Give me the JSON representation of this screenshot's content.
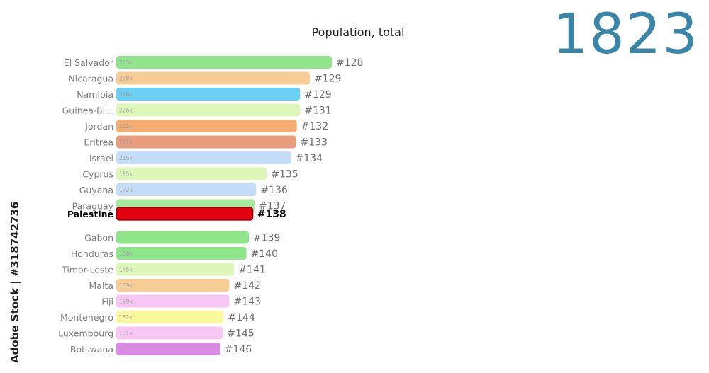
{
  "watermark": "Adobe Stock | #318742736",
  "chart_data": {
    "type": "bar",
    "title": "Population, total",
    "year": "1823",
    "highlight": "Palestine",
    "items": [
      {
        "name": "El Salvador",
        "value_label": "265k",
        "value": 265,
        "rank": "#128",
        "color": "#8fe58a"
      },
      {
        "name": "Nicaragua",
        "value_label": "238k",
        "value": 238,
        "rank": "#129",
        "color": "#f8cc95"
      },
      {
        "name": "Namibia",
        "value_label": "226k",
        "value": 226,
        "rank": "#129",
        "color": "#6bd0f5"
      },
      {
        "name": "Guinea-Bi...",
        "value_label": "226k",
        "value": 226,
        "rank": "#131",
        "color": "#dcf7b8"
      },
      {
        "name": "Jordan",
        "value_label": "222k",
        "value": 222,
        "rank": "#132",
        "color": "#f6ad72"
      },
      {
        "name": "Eritrea",
        "value_label": "221k",
        "value": 221,
        "rank": "#133",
        "color": "#ea9d7e"
      },
      {
        "name": "Israel",
        "value_label": "215k",
        "value": 215,
        "rank": "#134",
        "color": "#c3ddf9"
      },
      {
        "name": "Cyprus",
        "value_label": "185k",
        "value": 185,
        "rank": "#135",
        "color": "#dcf7b8"
      },
      {
        "name": "Guyana",
        "value_label": "172k",
        "value": 172,
        "rank": "#136",
        "color": "#c3ddf9"
      },
      {
        "name": "Paraguay",
        "value_label": "",
        "value": 170,
        "rank": "#137",
        "color": "#a5ea9f"
      },
      {
        "name": "Palestine",
        "value_label": "",
        "value": 168,
        "rank": "#138",
        "color": "#e3000f"
      },
      {
        "name": "Gabon",
        "value_label": "",
        "value": 163,
        "rank": "#139",
        "color": "#8fe58a"
      },
      {
        "name": "Honduras",
        "value_label": "160k",
        "value": 160,
        "rank": "#140",
        "color": "#8fe58a"
      },
      {
        "name": "Timor-Leste",
        "value_label": "145k",
        "value": 145,
        "rank": "#141",
        "color": "#dcf7b8"
      },
      {
        "name": "Malta",
        "value_label": "139k",
        "value": 139,
        "rank": "#142",
        "color": "#f8cc95"
      },
      {
        "name": "Fiji",
        "value_label": "139k",
        "value": 139,
        "rank": "#143",
        "color": "#f7c6f2"
      },
      {
        "name": "Montenegro",
        "value_label": "132k",
        "value": 132,
        "rank": "#144",
        "color": "#fbf79c"
      },
      {
        "name": "Luxembourg",
        "value_label": "131k",
        "value": 131,
        "rank": "#145",
        "color": "#f7c6f2"
      },
      {
        "name": "Botswana",
        "value_label": "",
        "value": 128,
        "rank": "#146",
        "color": "#d98be4"
      }
    ]
  }
}
